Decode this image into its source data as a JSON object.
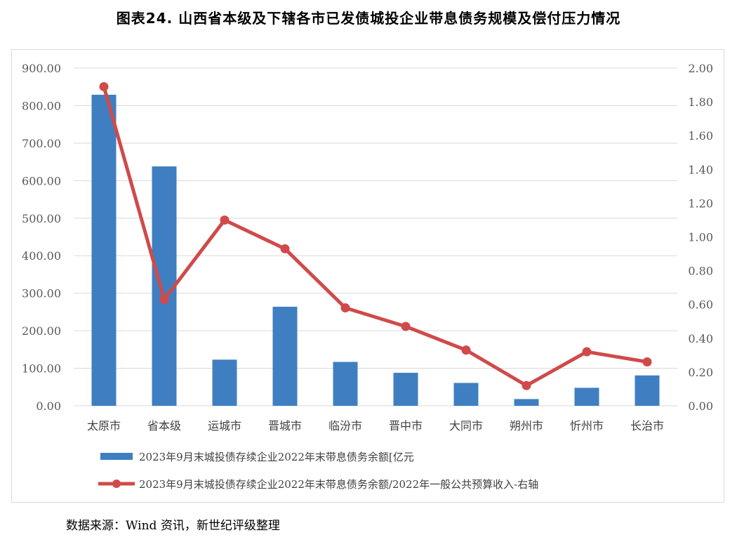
{
  "title": "图表24.  山西省本级及下辖各市已发债城投企业带息债务规模及偿付压力情况",
  "source": "数据来源：Wind 资讯，新世纪评级整理",
  "colors": {
    "bar": "#3f7fc1",
    "line": "#d04a4a",
    "grid": "#d9d9d9",
    "axis_text": "#595959"
  },
  "chart_data": {
    "type": "bar",
    "categories": [
      "太原市",
      "省本级",
      "运城市",
      "晋城市",
      "临汾市",
      "晋中市",
      "大同市",
      "朔州市",
      "忻州市",
      "长治市"
    ],
    "series": [
      {
        "name": "2023年9月末城投债存续企业2022年末带息债务余额[亿元",
        "type": "bar",
        "axis": "left",
        "values": [
          829,
          638,
          123,
          264,
          117,
          88,
          61,
          18,
          48,
          81
        ]
      },
      {
        "name": "2023年9月末城投债存续企业2022年末带息债务余额/2022年一般公共预算收入-右轴",
        "type": "line",
        "axis": "right",
        "values": [
          1.89,
          0.63,
          1.1,
          0.93,
          0.58,
          0.47,
          0.33,
          0.12,
          0.32,
          0.26
        ]
      }
    ],
    "y_left": {
      "min": 0,
      "max": 900,
      "step": 100,
      "tick_labels": [
        "0.00",
        "100.00",
        "200.00",
        "300.00",
        "400.00",
        "500.00",
        "600.00",
        "700.00",
        "800.00",
        "900.00"
      ]
    },
    "y_right": {
      "min": 0,
      "max": 2,
      "step": 0.2,
      "tick_labels": [
        "0.00",
        "0.20",
        "0.40",
        "0.60",
        "0.80",
        "1.00",
        "1.20",
        "1.40",
        "1.60",
        "1.80",
        "2.00"
      ]
    },
    "grid": true,
    "legend_position": "bottom"
  }
}
